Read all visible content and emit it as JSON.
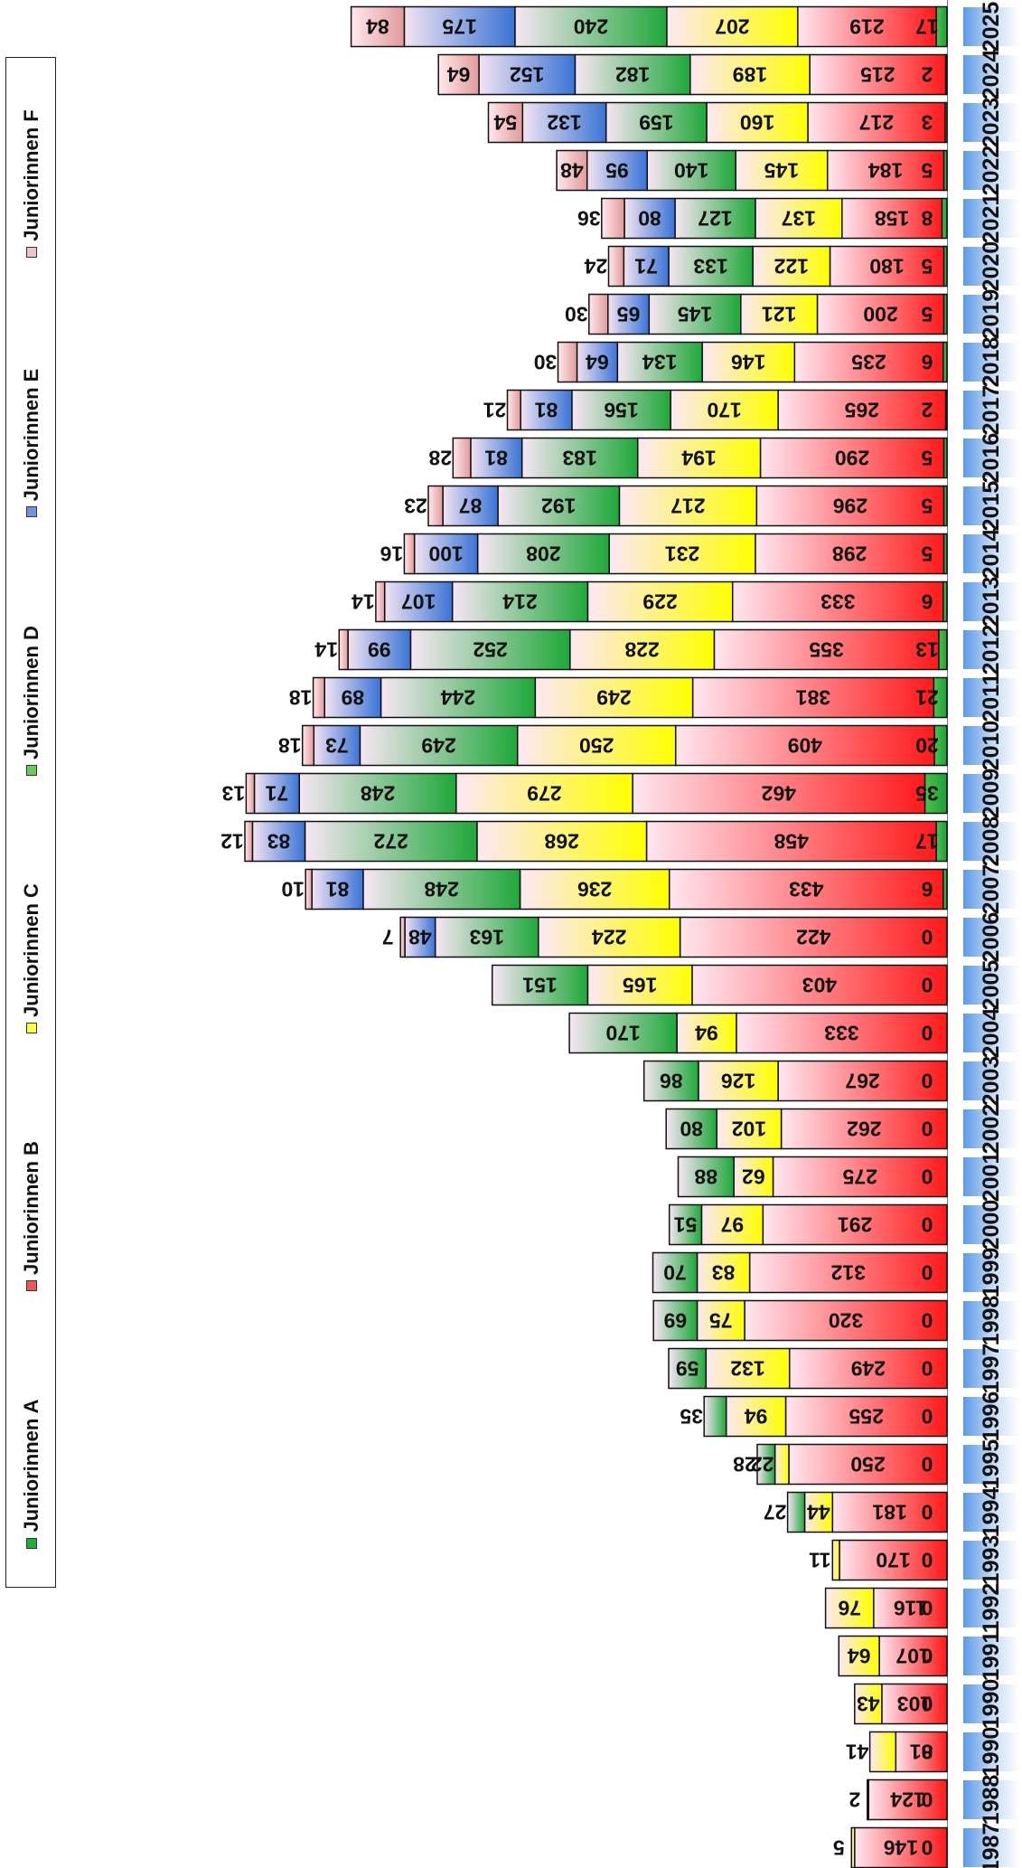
{
  "chart_data": {
    "type": "bar",
    "orientation": "horizontal",
    "stacked": true,
    "categories": [
      "2025",
      "2024",
      "2023",
      "2022",
      "2021",
      "2020",
      "2019",
      "2018",
      "2017",
      "2016",
      "2015",
      "2014",
      "2013",
      "2012",
      "2011",
      "2010",
      "2009",
      "2008",
      "2007",
      "2006",
      "2005",
      "2004",
      "2003",
      "2002",
      "2001",
      "2000",
      "1999",
      "1998",
      "1997",
      "1996",
      "1995",
      "1994",
      "1993",
      "1992",
      "1991",
      "1990",
      "1990",
      "1988",
      "1987"
    ],
    "series": [
      {
        "name": "Juniorinnen A",
        "color": "#1fae3c",
        "values": [
          17,
          2,
          3,
          5,
          8,
          5,
          5,
          6,
          2,
          5,
          5,
          5,
          6,
          13,
          21,
          20,
          35,
          17,
          6,
          0,
          0,
          0,
          0,
          0,
          0,
          0,
          0,
          0,
          0,
          0,
          0,
          0,
          0,
          0,
          0,
          0,
          0,
          0,
          0
        ]
      },
      {
        "name": "Juniorinnen B",
        "color": "#ff1f1f",
        "values": [
          219,
          215,
          217,
          184,
          158,
          180,
          200,
          235,
          265,
          290,
          296,
          298,
          333,
          355,
          381,
          409,
          462,
          458,
          433,
          422,
          403,
          333,
          267,
          262,
          275,
          291,
          312,
          320,
          249,
          255,
          250,
          181,
          170,
          116,
          107,
          103,
          81,
          124,
          146
        ]
      },
      {
        "name": "Juniorinnen C",
        "color": "#ffff00",
        "values": [
          207,
          189,
          160,
          145,
          137,
          122,
          121,
          146,
          170,
          194,
          217,
          231,
          229,
          228,
          249,
          250,
          279,
          268,
          236,
          224,
          165,
          94,
          126,
          102,
          62,
          97,
          83,
          75,
          132,
          94,
          22,
          44,
          11,
          76,
          64,
          43,
          41,
          2,
          5
        ]
      },
      {
        "name": "Juniorinnen D",
        "color": "#22a83a",
        "values": [
          240,
          182,
          159,
          140,
          127,
          133,
          145,
          134,
          156,
          183,
          192,
          208,
          214,
          252,
          244,
          249,
          248,
          272,
          248,
          163,
          151,
          170,
          86,
          80,
          88,
          51,
          70,
          69,
          59,
          35,
          28,
          27,
          0,
          0,
          0,
          0,
          0,
          0,
          0
        ]
      },
      {
        "name": "Juniorinnen E",
        "color": "#3f76d8",
        "values": [
          175,
          152,
          132,
          95,
          80,
          71,
          65,
          64,
          81,
          81,
          87,
          100,
          107,
          99,
          89,
          73,
          71,
          83,
          81,
          48,
          0,
          0,
          0,
          0,
          0,
          0,
          0,
          0,
          0,
          0,
          0,
          0,
          0,
          0,
          0,
          0,
          0,
          0,
          0
        ]
      },
      {
        "name": "Juniorinnen F",
        "color": "#e8a0a0",
        "values": [
          84,
          64,
          54,
          48,
          36,
          24,
          30,
          30,
          21,
          28,
          23,
          16,
          14,
          14,
          18,
          18,
          13,
          12,
          10,
          7,
          0,
          0,
          0,
          0,
          0,
          0,
          0,
          0,
          0,
          0,
          0,
          0,
          0,
          0,
          0,
          0,
          0,
          0,
          0
        ]
      }
    ],
    "legend_position": "left",
    "grid": false
  }
}
